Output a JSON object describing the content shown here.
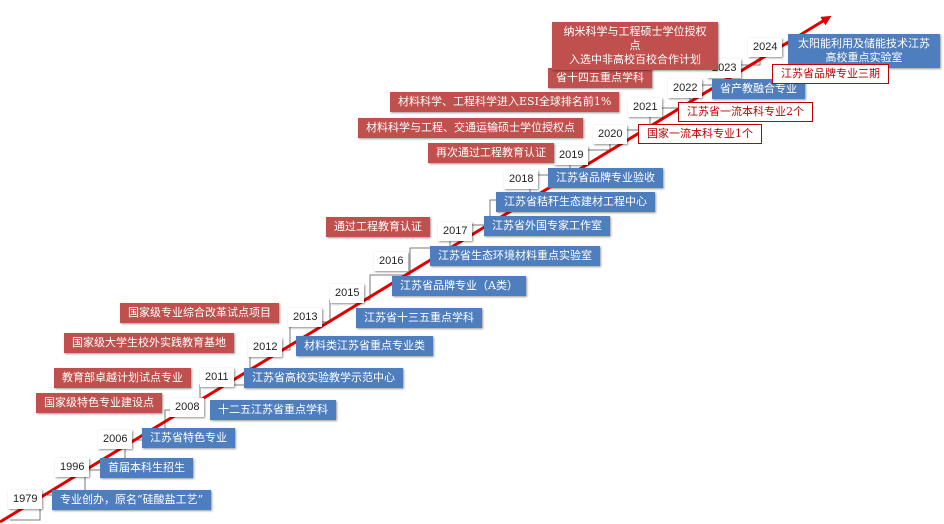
{
  "colors": {
    "line": "#e00000",
    "blue_box": "#4f7ebf",
    "red_box": "#c0504d",
    "outline_text": "#c00000"
  },
  "years": [
    "1979",
    "1996",
    "2006",
    "2008",
    "2011",
    "2012",
    "2013",
    "2015",
    "2016",
    "2017",
    "2018",
    "2019",
    "2020",
    "2021",
    "2022",
    "2023",
    "2024"
  ],
  "blue_items": [
    "专业创办，原名“硅酸盐工艺”",
    "首届本科生招生",
    "江苏省特色专业",
    "十二五江苏省重点学科",
    "江苏省高校实验教学示范中心",
    "材料类江苏省重点专业类",
    "江苏省十三五重点学科",
    "江苏省品牌专业（A类）",
    "江苏省生态环境材料重点实验室",
    "江苏省外国专家工作室",
    "江苏省秸秆生态建材工程中心",
    "江苏省品牌专业验收",
    "省产教融合专业",
    "太阳能利用及储能技术江苏",
    "高校重点实验室"
  ],
  "red_items": [
    "国家级特色专业建设点",
    "教育部卓越计划试点专业",
    "国家级大学生校外实践教育基地",
    "国家级专业综合改革试点项目",
    "通过工程教育认证",
    "再次通过工程教育认证",
    "材料科学与工程、交通运输硕士学位授权点",
    "材料科学、工程科学进入ESI全球排名前1%",
    "省十四五重点学科",
    "纳米科学与工程硕士学位授权点",
    "入选中非高校百校合作计划"
  ],
  "outline_items": [
    "国家一流本科专业1个",
    "江苏省一流本科专业2个",
    "江苏省品牌专业三期"
  ]
}
